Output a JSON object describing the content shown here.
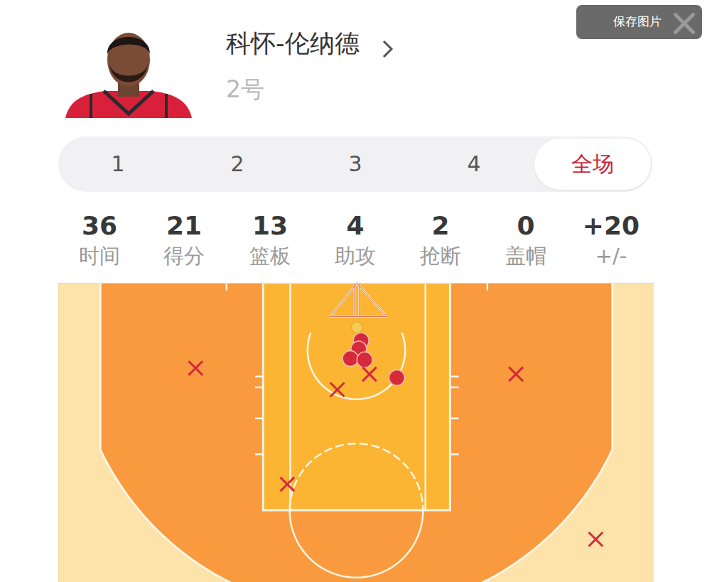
{
  "header": {
    "player_name": "科怀-伦纳德",
    "jersey_number": "2号",
    "save_button": "保存图片"
  },
  "tabs": {
    "items": [
      "1",
      "2",
      "3",
      "4",
      "全场"
    ],
    "active": "全场"
  },
  "stats": [
    {
      "value": 36,
      "label": "时间"
    },
    {
      "value": 21,
      "label": "得分"
    },
    {
      "value": 13,
      "label": "篮板"
    },
    {
      "value": 4,
      "label": "助攻"
    },
    {
      "value": 2,
      "label": "抢断"
    },
    {
      "value": 0,
      "label": "盖帽"
    },
    {
      "value": "+20",
      "label": "+/-"
    }
  ],
  "chart_data": {
    "type": "scatter",
    "xlim": [
      -25,
      25
    ],
    "ylim": [
      0,
      25
    ],
    "tick_labels": false,
    "series": [
      {
        "marker": "circle",
        "color": "#d42a3c",
        "x": [
          0.4,
          0.2,
          -0.5,
          0.7,
          3.4
        ],
        "y": [
          4.8,
          5.5,
          6.3,
          6.4,
          7.9
        ]
      },
      {
        "marker": "x",
        "color": "#d42a3c",
        "x": [
          -13.5,
          13.4,
          1.1,
          -1.6,
          -5.8,
          20.1
        ],
        "y": [
          7.1,
          7.6,
          7.6,
          8.9,
          16.8,
          21.4
        ]
      }
    ]
  }
}
